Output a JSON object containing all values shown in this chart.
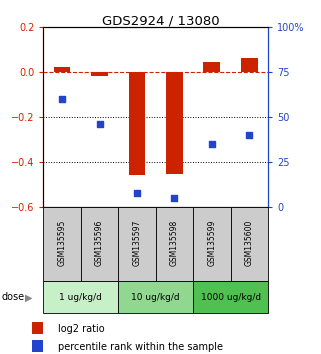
{
  "title": "GDS2924 / 13080",
  "samples": [
    "GSM135595",
    "GSM135596",
    "GSM135597",
    "GSM135598",
    "GSM135599",
    "GSM135600"
  ],
  "log2_ratio": [
    0.02,
    -0.02,
    -0.46,
    -0.455,
    0.042,
    0.06
  ],
  "percentile_rank": [
    60,
    46,
    8,
    5,
    35,
    40
  ],
  "bar_color": "#cc2200",
  "square_color": "#2244cc",
  "ylim_left": [
    -0.6,
    0.2
  ],
  "ylim_right": [
    0,
    100
  ],
  "yticks_left": [
    0.2,
    0.0,
    -0.2,
    -0.4,
    -0.6
  ],
  "yticks_right": [
    100,
    75,
    50,
    25,
    0
  ],
  "ytick_labels_right": [
    "100%",
    "75",
    "50",
    "25",
    "0"
  ],
  "dose_groups": [
    {
      "label": "1 ug/kg/d",
      "samples_idx": [
        0,
        1
      ],
      "color": "#c8f0c8"
    },
    {
      "label": "10 ug/kg/d",
      "samples_idx": [
        2,
        3
      ],
      "color": "#90d890"
    },
    {
      "label": "1000 ug/kg/d",
      "samples_idx": [
        4,
        5
      ],
      "color": "#50c050"
    }
  ],
  "hline_y": 0.0,
  "dotted_lines": [
    -0.2,
    -0.4
  ],
  "bar_width": 0.45,
  "square_size": 22,
  "left_ytick_color": "#cc2200",
  "right_ytick_color": "#2244cc",
  "sample_box_color": "#cccccc",
  "fig_width": 3.21,
  "fig_height": 3.54,
  "dpi": 100
}
